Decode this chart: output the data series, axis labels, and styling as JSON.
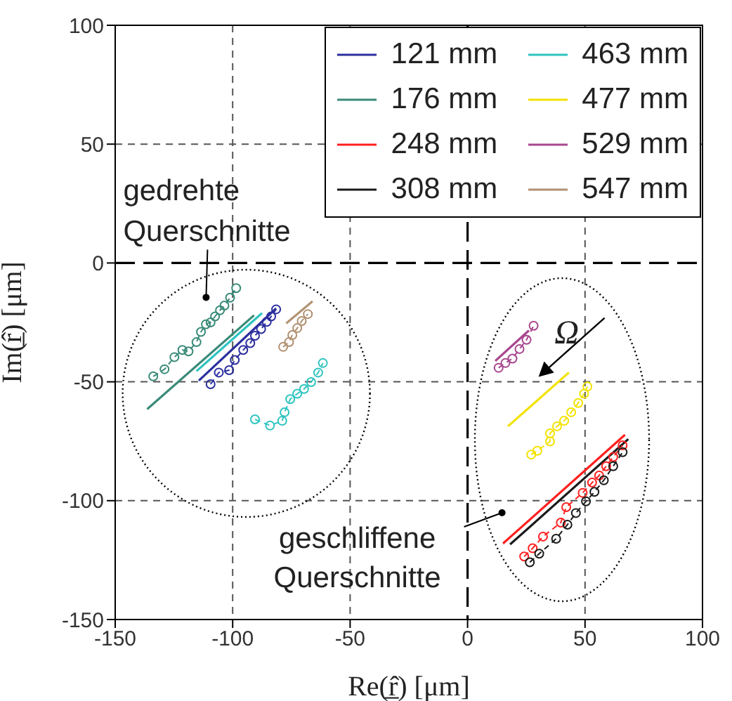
{
  "chart_data": {
    "type": "line",
    "xlabel": "Re(r̲̂) [μm]",
    "ylabel": "Im(r̲̂) [μm]",
    "xlim": [
      -150,
      100
    ],
    "xticks": [
      -150,
      -100,
      -50,
      0,
      50,
      100
    ],
    "ylim": [
      -150,
      100
    ],
    "yticks": [
      -150,
      -100,
      -50,
      0,
      50,
      100
    ],
    "grid": true,
    "legend": "top right",
    "marker": "none",
    "line_style": "solid",
    "annotations": [
      "gedrehte Querschnitte",
      "Ω",
      "geschliffene Querschnitte"
    ],
    "series": [
      {
        "name": "121 mm",
        "color": "#2b2f9e",
        "x": [
          -114.4,
          -81.5
        ],
        "values": [
          -49.5,
          -19.1
        ]
      },
      {
        "name": "176 mm",
        "color": "#3a8a78",
        "x": [
          -136.4,
          -90.9
        ],
        "values": [
          -61.5,
          -22.0
        ]
      },
      {
        "name": "248 mm",
        "color": "#ff2020",
        "x": [
          15.1,
          67.0
        ],
        "values": [
          -118.0,
          -72.3
        ]
      },
      {
        "name": "308 mm",
        "color": "#1a1a1a",
        "x": [
          18.1,
          68.4
        ],
        "values": [
          -118.4,
          -74.1
        ]
      },
      {
        "name": "463 mm",
        "color": "#2ec4c0",
        "x": [
          -115.4,
          -87.5
        ],
        "values": [
          -45.5,
          -21.1
        ]
      },
      {
        "name": "477 mm",
        "color": "#f2e200",
        "x": [
          17.2,
          43.1
        ],
        "values": [
          -68.7,
          -46.1
        ]
      },
      {
        "name": "529 mm",
        "color": "#a8468f",
        "x": [
          11.8,
          26.1
        ],
        "values": [
          -41.2,
          -28.4
        ]
      },
      {
        "name": "547 mm",
        "color": "#b09070",
        "x": [
          -77.2,
          -66.0
        ],
        "values": [
          -25.4,
          -16.1
        ]
      },
      {
        "color": "#2b2f9e",
        "marker": "circle",
        "line_style": "dashed",
        "x": [
          -109.4,
          -105.9,
          -101.5,
          -99.1,
          -95.5,
          -92.5,
          -90.5,
          -87.9,
          -85.5,
          -83.6,
          -81.5
        ],
        "values": [
          -51.0,
          -46.1,
          -45.1,
          -40.8,
          -36.6,
          -33.7,
          -30.6,
          -27.8,
          -24.8,
          -22.5,
          -19.5
        ]
      },
      {
        "color": "#3a8a78",
        "marker": "circle",
        "line_style": "dashed",
        "x": [
          -133.8,
          -129.0,
          -124.8,
          -121.4,
          -118.8,
          -115.4,
          -113.5,
          -111.4,
          -109.4,
          -107.5,
          -105.4,
          -103.5,
          -101.1,
          -98.5
        ],
        "values": [
          -47.7,
          -44.7,
          -39.6,
          -36.6,
          -37.2,
          -33.3,
          -29.0,
          -25.8,
          -25.0,
          -22.5,
          -19.9,
          -17.9,
          -14.6,
          -10.6
        ]
      },
      {
        "color": "#ff2020",
        "marker": "circle",
        "line_style": "dashed",
        "x": [
          24.1,
          27.7,
          32.1,
          39.7,
          42.0,
          49.0,
          53.0,
          56.0,
          59.0,
          62.0,
          66.0
        ],
        "values": [
          -123.5,
          -120.0,
          -115.1,
          -109.2,
          -102.7,
          -96.7,
          -92.4,
          -89.4,
          -85.5,
          -81.6,
          -76.7
        ]
      },
      {
        "color": "#1a1a1a",
        "marker": "circle",
        "line_style": "dashed",
        "x": [
          26.5,
          30.5,
          37.7,
          42.5,
          46.1,
          50.4,
          54.0,
          58.0,
          62.0,
          66.0
        ],
        "values": [
          -125.9,
          -122.3,
          -116.0,
          -110.1,
          -105.2,
          -100.3,
          -96.3,
          -91.4,
          -85.5,
          -79.6
        ]
      },
      {
        "color": "#2ec4c0",
        "marker": "circle",
        "line_style": "dashed",
        "x": [
          -90.5,
          -84.1,
          -78.9,
          -77.9,
          -75.5,
          -72.5,
          -69.6,
          -66.6,
          -63.6,
          -61.6
        ],
        "values": [
          -65.8,
          -68.4,
          -66.4,
          -62.8,
          -57.3,
          -55.0,
          -53.0,
          -50.1,
          -46.1,
          -42.1
        ]
      },
      {
        "color": "#f2e200",
        "marker": "circle",
        "line_style": "dashed",
        "x": [
          27.1,
          29.7,
          35.1,
          35.1,
          38.1,
          41.1,
          44.1,
          47.1,
          49.6,
          51.0
        ],
        "values": [
          -80.6,
          -79.0,
          -75.1,
          -71.7,
          -68.7,
          -66.4,
          -62.8,
          -58.9,
          -55.0,
          -52.0
        ]
      },
      {
        "color": "#a8468f",
        "marker": "circle",
        "line_style": "dashed",
        "x": [
          13.2,
          16.1,
          19.1,
          22.1,
          25.1,
          28.1
        ],
        "values": [
          -44.1,
          -42.1,
          -40.2,
          -36.2,
          -32.3,
          -26.4
        ]
      },
      {
        "color": "#b09070",
        "marker": "circle",
        "line_style": "dashed",
        "x": [
          -78.5,
          -76.0,
          -74.6,
          -72.5,
          -70.6,
          -68.0
        ],
        "values": [
          -35.3,
          -33.3,
          -30.3,
          -27.4,
          -24.4,
          -21.5
        ]
      }
    ]
  }
}
